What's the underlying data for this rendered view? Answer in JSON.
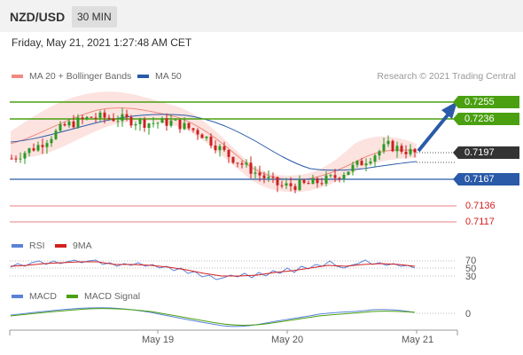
{
  "header": {
    "symbol": "NZD/USD",
    "interval": "30 MIN"
  },
  "timestamp": "Friday, May 21, 2021 1:27:48 AM CET",
  "legend": {
    "bollinger": {
      "label": "MA 20 + Bollinger Bands",
      "color": "#f08a80"
    },
    "ma50": {
      "label": "MA 50",
      "color": "#2a5aa8"
    },
    "rsi": {
      "label": "RSI",
      "color": "#5a82d8"
    },
    "rsi_ma": {
      "label": "9MA",
      "color": "#d42020"
    },
    "macd": {
      "label": "MACD",
      "color": "#5a82d8"
    },
    "macd_signal": {
      "label": "MACD Signal",
      "color": "#4aa010"
    }
  },
  "credit": "Research © 2021 Trading Central",
  "levels": {
    "r2": "0.7255",
    "r1": "0.7236",
    "last": "0.7197",
    "pivot": "0.7167",
    "s1": "0.7136",
    "s2": "0.7117"
  },
  "colors": {
    "resistance": "#4aa010",
    "pivot": "#2a5aa8",
    "support": "#d42020",
    "last": "#333333",
    "up_candle": "#2a9a22",
    "down_candle": "#cc2020"
  },
  "rsi_levels": [
    "70",
    "50",
    "30"
  ],
  "macd_zero": "0",
  "x_axis": [
    "May 19",
    "May 20",
    "May 21"
  ],
  "chart_data": {
    "type": "candlestick",
    "symbol": "NZD/USD",
    "interval": "30 MIN",
    "y_axis_labels": [
      0.7255,
      0.7236,
      0.7197,
      0.7167,
      0.7136,
      0.7117
    ],
    "price_path": [
      0.719,
      0.7205,
      0.7228,
      0.7238,
      0.7236,
      0.7231,
      0.7232,
      0.722,
      0.7195,
      0.7175,
      0.7158,
      0.716,
      0.7168,
      0.7185,
      0.7205,
      0.7196
    ],
    "annotations": [
      "upward arrow target 0.7255"
    ]
  }
}
